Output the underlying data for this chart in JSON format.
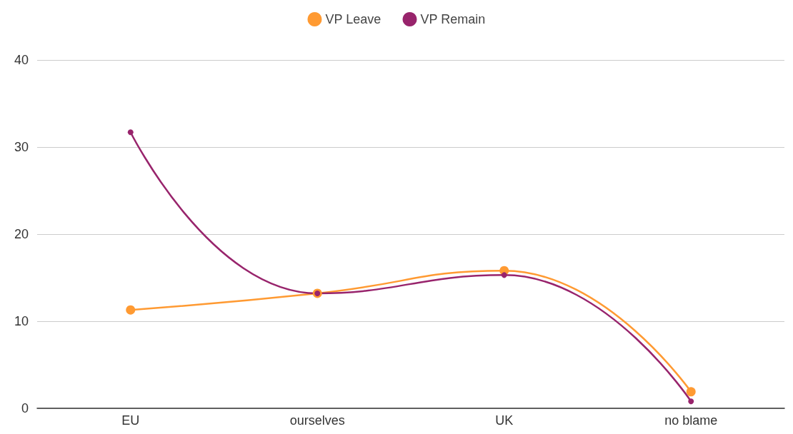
{
  "chart_data": {
    "type": "line",
    "categories": [
      "EU",
      "ourselves",
      "UK",
      "no blame"
    ],
    "series": [
      {
        "name": "VP Leave",
        "color": "#ff9a32",
        "values": [
          11.3,
          13.2,
          15.8,
          1.9
        ]
      },
      {
        "name": "VP Remain",
        "color": "#98246c",
        "values": [
          31.7,
          13.2,
          15.3,
          0.8
        ]
      }
    ],
    "ylim": [
      0,
      40
    ],
    "yticks": [
      0,
      10,
      20,
      30,
      40
    ],
    "grid": "y",
    "legend": "top",
    "marker": "circle",
    "line_style": "solid"
  }
}
